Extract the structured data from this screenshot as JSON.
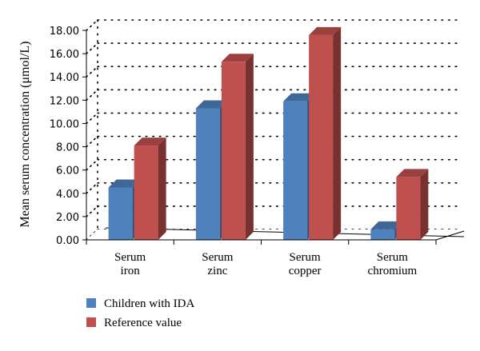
{
  "chart_data": {
    "type": "bar",
    "categories": [
      [
        "Serum",
        "iron"
      ],
      [
        "Serum",
        "zinc"
      ],
      [
        "Serum",
        "copper"
      ],
      [
        "Serum",
        "chromium"
      ]
    ],
    "series": [
      {
        "name": "Children with IDA",
        "values": [
          4.5,
          11.3,
          11.9,
          0.9
        ],
        "color": "#4f81bd"
      },
      {
        "name": "Reference value",
        "values": [
          8.1,
          15.3,
          17.6,
          5.4
        ],
        "color": "#c0504d"
      }
    ],
    "ylabel": "Mean serum concentration (μmol/L)",
    "ylim": [
      0,
      18
    ],
    "yticks": [
      "0.00",
      "2.00",
      "4.00",
      "6.00",
      "8.00",
      "10.00",
      "12.00",
      "14.00",
      "16.00",
      "18.00"
    ],
    "grid": true,
    "legend_position": "bottom-left"
  }
}
